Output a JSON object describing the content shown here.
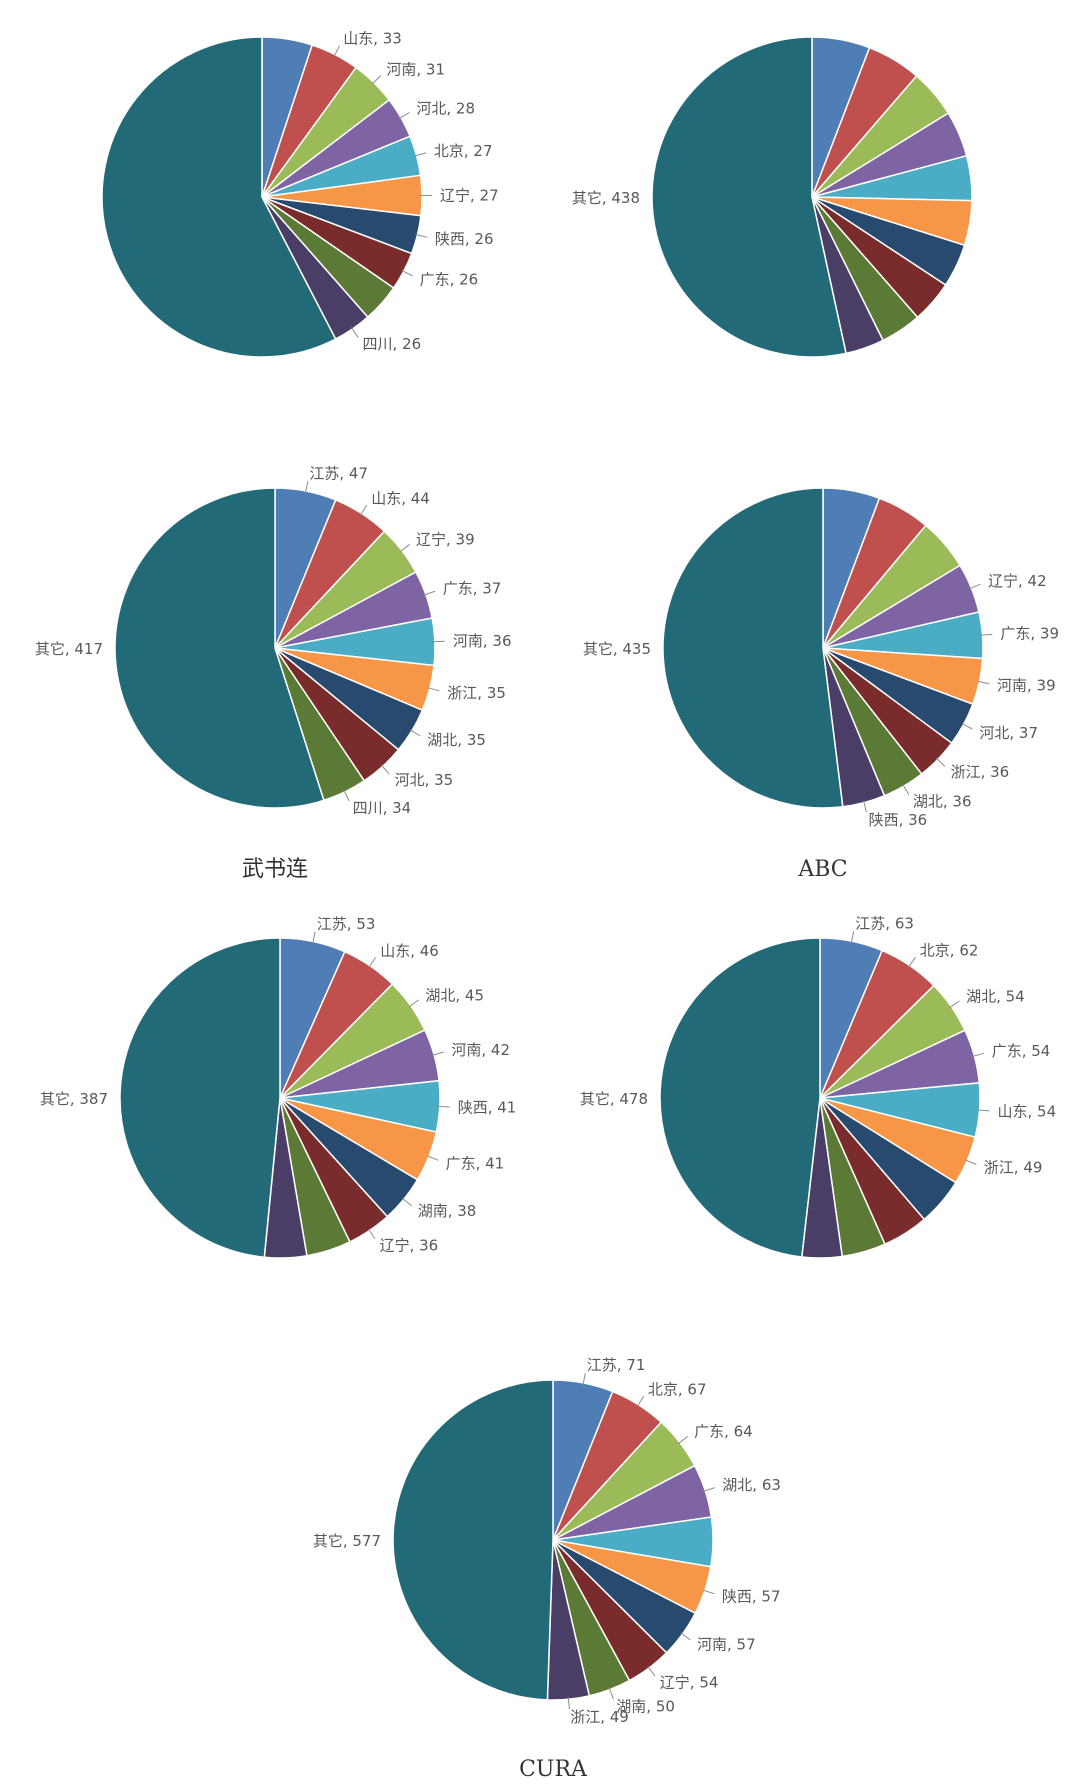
{
  "colors": [
    "#4F7DB5",
    "#C0504D",
    "#9BBB59",
    "#7F64A3",
    "#4BACC6",
    "#F79646",
    "#274A6E",
    "#7A2C2C",
    "#5A7A35",
    "#4A3D66",
    "#236A78"
  ],
  "chart_data": [
    {
      "type": "pie",
      "title": "",
      "slices": [
        {
          "label": "",
          "value": 34
        },
        {
          "label": "山东",
          "value": 33
        },
        {
          "label": "河南",
          "value": 31
        },
        {
          "label": "河北",
          "value": 28
        },
        {
          "label": "北京",
          "value": 27
        },
        {
          "label": "辽宁",
          "value": 27
        },
        {
          "label": "陕西",
          "value": 26
        },
        {
          "label": "广东",
          "value": 26
        },
        {
          "label": "",
          "value": 26
        },
        {
          "label": "四川",
          "value": 26
        },
        {
          "label": "",
          "value": 386
        }
      ]
    },
    {
      "type": "pie",
      "title": "",
      "slices": [
        {
          "label": "",
          "value": 48
        },
        {
          "label": "",
          "value": 45
        },
        {
          "label": "",
          "value": 40
        },
        {
          "label": "",
          "value": 38
        },
        {
          "label": "",
          "value": 37
        },
        {
          "label": "",
          "value": 37
        },
        {
          "label": "",
          "value": 36
        },
        {
          "label": "",
          "value": 35
        },
        {
          "label": "",
          "value": 34
        },
        {
          "label": "",
          "value": 32
        },
        {
          "label": "其它",
          "value": 438
        }
      ]
    },
    {
      "type": "pie",
      "title": "武书连",
      "slices": [
        {
          "label": "江苏",
          "value": 47
        },
        {
          "label": "山东",
          "value": 44
        },
        {
          "label": "辽宁",
          "value": 39
        },
        {
          "label": "广东",
          "value": 37
        },
        {
          "label": "河南",
          "value": 36
        },
        {
          "label": "浙江",
          "value": 35
        },
        {
          "label": "湖北",
          "value": 35
        },
        {
          "label": "河北",
          "value": 35
        },
        {
          "label": "四川",
          "value": 34
        },
        {
          "label": "其它",
          "value": 417
        }
      ]
    },
    {
      "type": "pie",
      "title": "ABC",
      "slices": [
        {
          "label": "",
          "value": 48
        },
        {
          "label": "",
          "value": 45
        },
        {
          "label": "",
          "value": 44
        },
        {
          "label": "辽宁",
          "value": 42
        },
        {
          "label": "广东",
          "value": 39
        },
        {
          "label": "河南",
          "value": 39
        },
        {
          "label": "河北",
          "value": 37
        },
        {
          "label": "浙江",
          "value": 36
        },
        {
          "label": "湖北",
          "value": 36
        },
        {
          "label": "陕西",
          "value": 36
        },
        {
          "label": "其它",
          "value": 435
        }
      ]
    },
    {
      "type": "pie",
      "title": "",
      "slices": [
        {
          "label": "江苏",
          "value": 53
        },
        {
          "label": "山东",
          "value": 46
        },
        {
          "label": "湖北",
          "value": 45
        },
        {
          "label": "河南",
          "value": 42
        },
        {
          "label": "陕西",
          "value": 41
        },
        {
          "label": "广东",
          "value": 41
        },
        {
          "label": "湖南",
          "value": 38
        },
        {
          "label": "辽宁",
          "value": 36
        },
        {
          "label": "",
          "value": 36
        },
        {
          "label": "",
          "value": 34
        },
        {
          "label": "其它",
          "value": 387
        }
      ]
    },
    {
      "type": "pie",
      "title": "",
      "slices": [
        {
          "label": "江苏",
          "value": 63
        },
        {
          "label": "北京",
          "value": 62
        },
        {
          "label": "湖北",
          "value": 54
        },
        {
          "label": "广东",
          "value": 54
        },
        {
          "label": "山东",
          "value": 54
        },
        {
          "label": "浙江",
          "value": 49
        },
        {
          "label": "",
          "value": 48
        },
        {
          "label": "",
          "value": 46
        },
        {
          "label": "",
          "value": 44
        },
        {
          "label": "",
          "value": 40
        },
        {
          "label": "其它",
          "value": 478
        }
      ]
    },
    {
      "type": "pie",
      "title": "CURA",
      "slices": [
        {
          "label": "江苏",
          "value": 71
        },
        {
          "label": "北京",
          "value": 67
        },
        {
          "label": "广东",
          "value": 64
        },
        {
          "label": "湖北",
          "value": 63
        },
        {
          "label": "",
          "value": 58
        },
        {
          "label": "陕西",
          "value": 57
        },
        {
          "label": "河南",
          "value": 57
        },
        {
          "label": "辽宁",
          "value": 54
        },
        {
          "label": "湖南",
          "value": 50
        },
        {
          "label": "浙江",
          "value": 49
        },
        {
          "label": "其它",
          "value": 577
        }
      ]
    }
  ]
}
